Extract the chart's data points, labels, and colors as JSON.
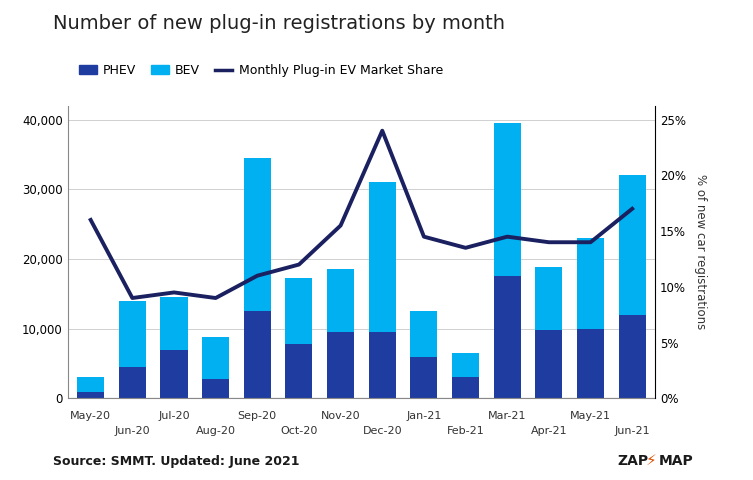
{
  "title": "Number of new plug-in registrations by month",
  "source_text": "Source: SMMT. Updated: June 2021",
  "months": [
    "May-20",
    "Jun-20",
    "Jul-20",
    "Aug-20",
    "Sep-20",
    "Oct-20",
    "Nov-20",
    "Dec-20",
    "Jan-21",
    "Feb-21",
    "Mar-21",
    "Apr-21",
    "May-21",
    "Jun-21"
  ],
  "phev": [
    900,
    4500,
    7000,
    2800,
    12500,
    7800,
    9500,
    9500,
    6000,
    3000,
    17500,
    9800,
    10000,
    12000
  ],
  "bev": [
    2200,
    9500,
    7500,
    6000,
    22000,
    9500,
    9000,
    21500,
    6500,
    3500,
    22000,
    9000,
    13000,
    20000
  ],
  "market_share": [
    16.0,
    9.0,
    9.5,
    9.0,
    11.0,
    12.0,
    15.5,
    24.0,
    14.5,
    13.5,
    14.5,
    14.0,
    14.0,
    17.0
  ],
  "phev_color": "#1f3da0",
  "bev_color": "#00b0f0",
  "line_color": "#1a2060",
  "ylabel_right": "% of new car registrations",
  "ylim_left": [
    0,
    42000
  ],
  "ylim_right": [
    0,
    26.25
  ],
  "yticks_left": [
    0,
    10000,
    20000,
    30000,
    40000
  ],
  "yticks_right": [
    0,
    5,
    10,
    15,
    20,
    25
  ],
  "background_color": "#ffffff",
  "title_fontsize": 14,
  "axis_fontsize": 8.5,
  "legend_fontsize": 9
}
